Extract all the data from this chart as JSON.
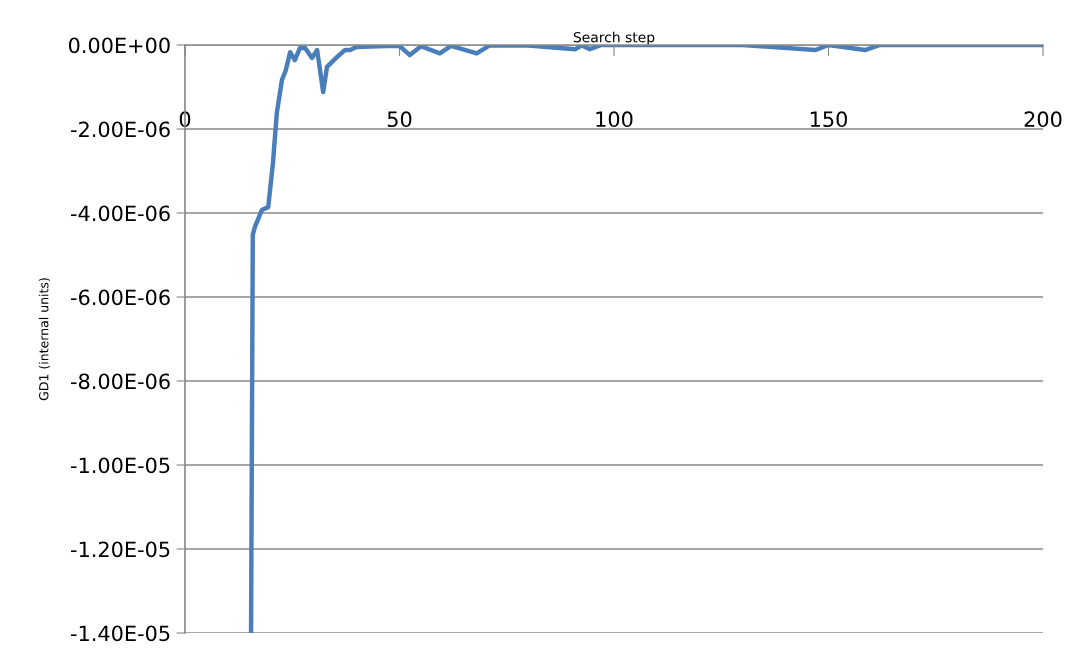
{
  "chart_data": {
    "type": "line",
    "xlabel": "Search step",
    "ylabel": "GD1 (internal units)",
    "x": [
      15.4,
      15.8,
      16.3,
      17.9,
      19.4,
      20.5,
      21.4,
      22.6,
      23.5,
      24.5,
      25.6,
      26.8,
      28,
      29.6,
      30.8,
      32.2,
      33.1,
      35.4,
      37.3,
      38.5,
      40,
      45,
      50,
      52.4,
      55,
      59.4,
      62,
      68,
      71,
      80,
      91,
      92.5,
      94.4,
      97,
      110,
      130,
      147,
      150,
      158.5,
      162,
      180,
      200
    ],
    "series": [
      {
        "color": "#4a7ebb",
        "values": [
          -1.4e-05,
          -4.52e-06,
          -4.33e-06,
          -3.93e-06,
          -3.86e-06,
          -2.81e-06,
          -1.62e-06,
          -8.3e-07,
          -6e-07,
          -1.7e-07,
          -3.6e-07,
          -7e-08,
          -7e-08,
          -3.1e-07,
          -1.2e-07,
          -1.12e-06,
          -5.2e-07,
          -2.9e-07,
          -1.2e-07,
          -1.2e-07,
          -5e-08,
          -3e-08,
          -2e-08,
          -2.4e-07,
          -3e-08,
          -2e-07,
          -2e-08,
          -2e-07,
          -1e-08,
          -1e-08,
          -1e-07,
          -1e-08,
          -1e-07,
          0,
          0,
          0,
          -1.2e-07,
          0,
          -1.2e-07,
          0,
          0,
          0
        ]
      }
    ],
    "xlim": [
      0,
      200
    ],
    "xticks": [
      0,
      50,
      100,
      150,
      200
    ],
    "ylim": [
      -1.4e-05,
      0
    ],
    "yticks": [
      {
        "value": 0,
        "label": "0.00E+00"
      },
      {
        "value": -2e-06,
        "label": "-2.00E-06"
      },
      {
        "value": -4e-06,
        "label": "-4.00E-06"
      },
      {
        "value": -6e-06,
        "label": "-6.00E-06"
      },
      {
        "value": -8e-06,
        "label": "-8.00E-06"
      },
      {
        "value": -1e-05,
        "label": "-1.00E-05"
      },
      {
        "value": -1.2e-05,
        "label": "-1.20E-05"
      },
      {
        "value": -1.4e-05,
        "label": "-1.40E-05"
      }
    ],
    "grid": "y",
    "marker": "none",
    "line_style": "solid",
    "legend": false
  }
}
